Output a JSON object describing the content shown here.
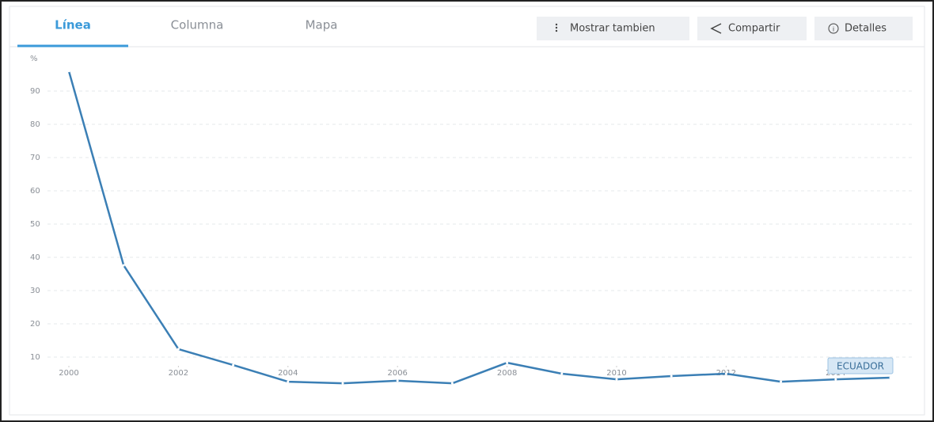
{
  "tabs": [
    "Línea",
    "Columna",
    "Mapa"
  ],
  "buttons": [
    "Mostrar tambien",
    "Compartir",
    "Detalles"
  ],
  "chart_data": {
    "type": "line",
    "y_label": "%",
    "x": [
      2000,
      2001,
      2002,
      2003,
      2004,
      2005,
      2006,
      2007,
      2008,
      2009,
      2010,
      2011,
      2012,
      2013,
      2014,
      2015
    ],
    "series": [
      {
        "name": "ECUADOR",
        "color": "#3b7fb5",
        "values": [
          96,
          37.6,
          12.4,
          7.6,
          2.6,
          2.1,
          2.9,
          2.1,
          8.3,
          5.0,
          3.3,
          4.3,
          5.0,
          2.6,
          3.3,
          3.8
        ]
      }
    ],
    "xlim": [
      2000,
      2015
    ],
    "xticks": [
      2000,
      2002,
      2004,
      2006,
      2008,
      2010,
      2012,
      2014
    ],
    "ylim": [
      0,
      100
    ],
    "yticks": [
      10,
      20,
      30,
      40,
      50,
      60,
      70,
      80,
      90
    ],
    "grid": true
  }
}
